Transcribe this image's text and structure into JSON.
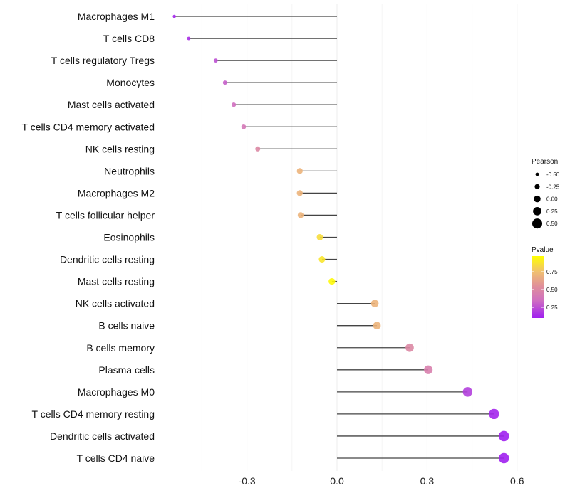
{
  "chart_data": {
    "type": "lollipop",
    "title": "",
    "xlabel": "",
    "ylabel": "",
    "xlim": [
      -0.58,
      0.64
    ],
    "xticks": [
      -0.3,
      0.0,
      0.3,
      0.6
    ],
    "xtick_labels": [
      "-0.3",
      "0.0",
      "0.3",
      "0.6"
    ],
    "grid": true,
    "categories": [
      "Macrophages M1",
      "T cells CD8",
      "T cells regulatory  Tregs",
      "Monocytes",
      "Mast cells activated",
      "T cells CD4 memory activated",
      "NK cells resting",
      "Neutrophils",
      "Macrophages M2",
      "T cells follicular helper",
      "Eosinophils",
      "Dendritic cells resting",
      "Mast cells resting",
      "NK cells activated",
      "B cells naive",
      "B cells memory",
      "Plasma cells",
      "Macrophages M0",
      "T cells CD4 memory resting",
      "Dendritic cells activated",
      "T cells CD4 naive"
    ],
    "pearson": [
      -0.542,
      -0.494,
      -0.404,
      -0.373,
      -0.344,
      -0.311,
      -0.264,
      -0.124,
      -0.124,
      -0.121,
      -0.057,
      -0.05,
      -0.017,
      0.126,
      0.133,
      0.242,
      0.304,
      0.435,
      0.523,
      0.556,
      0.556
    ],
    "pvalue": [
      0.12,
      0.15,
      0.25,
      0.3,
      0.35,
      0.4,
      0.5,
      0.7,
      0.7,
      0.7,
      0.85,
      0.88,
      0.95,
      0.7,
      0.7,
      0.5,
      0.45,
      0.2,
      0.12,
      0.1,
      0.1
    ],
    "legend": {
      "placement": "right",
      "size_title": "Pearson",
      "size_values": [
        -0.5,
        -0.25,
        0.0,
        0.25,
        0.5
      ],
      "size_labels": [
        "-0.50",
        "-0.25",
        "0.00",
        "0.25",
        "0.50"
      ],
      "color_title": "Pvalue",
      "color_ticks": [
        0.75,
        0.5,
        0.25
      ],
      "color_labels": [
        "0.75",
        "0.50",
        "0.25"
      ],
      "color_range": [
        0.1,
        0.97
      ],
      "colors": [
        "#a020f0",
        "#d070c0",
        "#e0909a",
        "#f0c070",
        "#ffff00"
      ]
    }
  }
}
